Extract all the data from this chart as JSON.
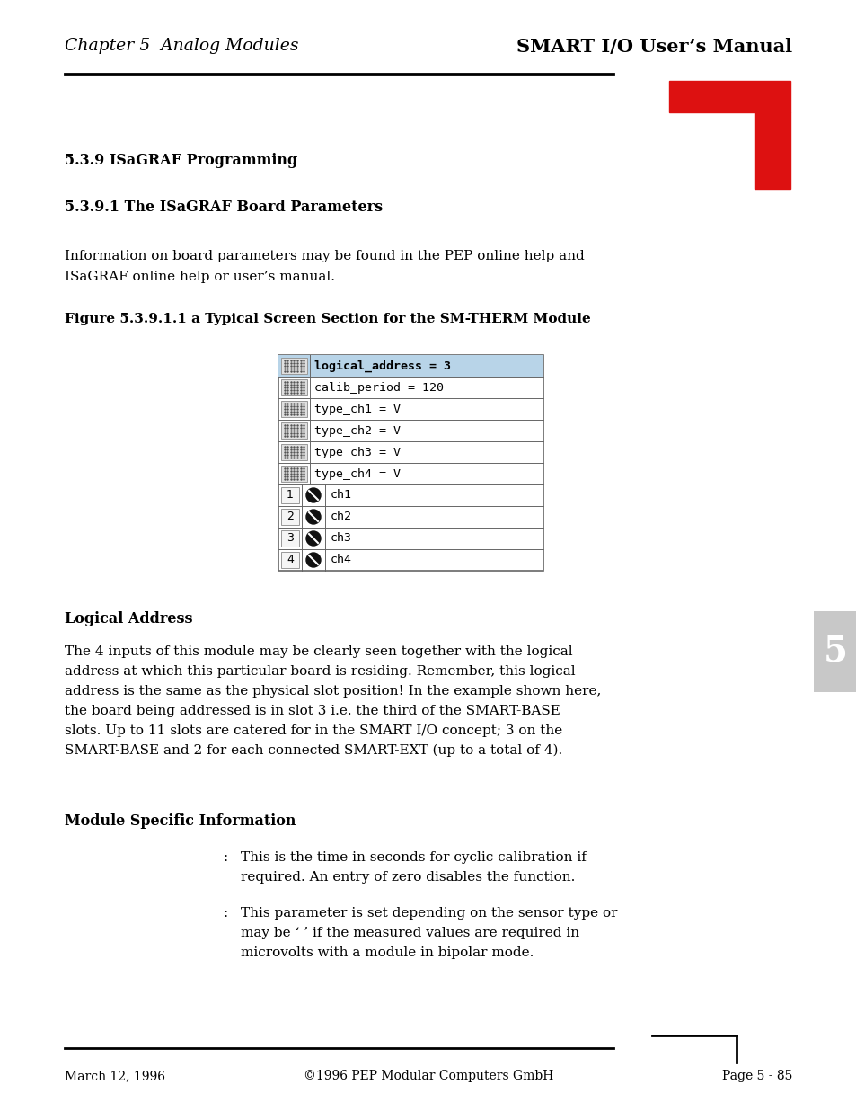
{
  "page_width": 9.54,
  "page_height": 12.16,
  "bg_color": "#ffffff",
  "header_left": "Chapter 5  Analog Modules",
  "header_right": "SMART I/O User’s Manual",
  "footer_left": "March 12, 1996",
  "footer_center": "©1996 PEP Modular Computers GmbH",
  "footer_right": "Page 5 - 85",
  "section_title": "5.3.9 ISaGRAF Programming",
  "subsection_title": "5.3.9.1 The ISaGRAF Board Parameters",
  "intro_line1": "Information on board parameters may be found in the PEP online help and",
  "intro_line2": "ISaGRAF online help or user’s manual.",
  "figure_title": "Figure 5.3.9.1.1 a Typical Screen Section for the SM-THERM Module",
  "table_rows_param": [
    {
      "text": "logical_address = 3",
      "highlighted": true
    },
    {
      "text": "calib_period = 120",
      "highlighted": false
    },
    {
      "text": "type_ch1 = V",
      "highlighted": false
    },
    {
      "text": "type_ch2 = V",
      "highlighted": false
    },
    {
      "text": "type_ch3 = V",
      "highlighted": false
    },
    {
      "text": "type_ch4 = V",
      "highlighted": false
    }
  ],
  "table_rows_ch": [
    {
      "num": "1",
      "text": "ch1"
    },
    {
      "num": "2",
      "text": "ch2"
    },
    {
      "num": "3",
      "text": "ch3"
    },
    {
      "num": "4",
      "text": "ch4"
    }
  ],
  "logical_address_heading": "Logical Address",
  "logical_address_lines": [
    "The 4 inputs of this module may be clearly seen together with the logical",
    "address at which this particular board is residing. Remember, this logical",
    "address is the same as the physical slot position! In the example shown here,",
    "the board being addressed is in slot 3 i.e. the third of the SMART-BASE",
    "slots. Up to 11 slots are catered for in the SMART I/O concept; 3 on the",
    "SMART-BASE and 2 for each connected SMART-EXT (up to a total of 4)."
  ],
  "module_specific_heading": "Module Specific Information",
  "module_item1_lines": [
    "This is the time in seconds for cyclic calibration if",
    "required. An entry of zero disables the function."
  ],
  "module_item2_lines": [
    "This parameter is set depending on the sensor type or",
    "may be ‘ ’ if the measured values are required in",
    "microvolts with a module in bipolar mode."
  ],
  "highlight_color": "#b8d4e8",
  "table_border_color": "#666666",
  "table_bg_color": "#ffffff",
  "red_color": "#dd1111",
  "tab_color": "#c8c8c8"
}
